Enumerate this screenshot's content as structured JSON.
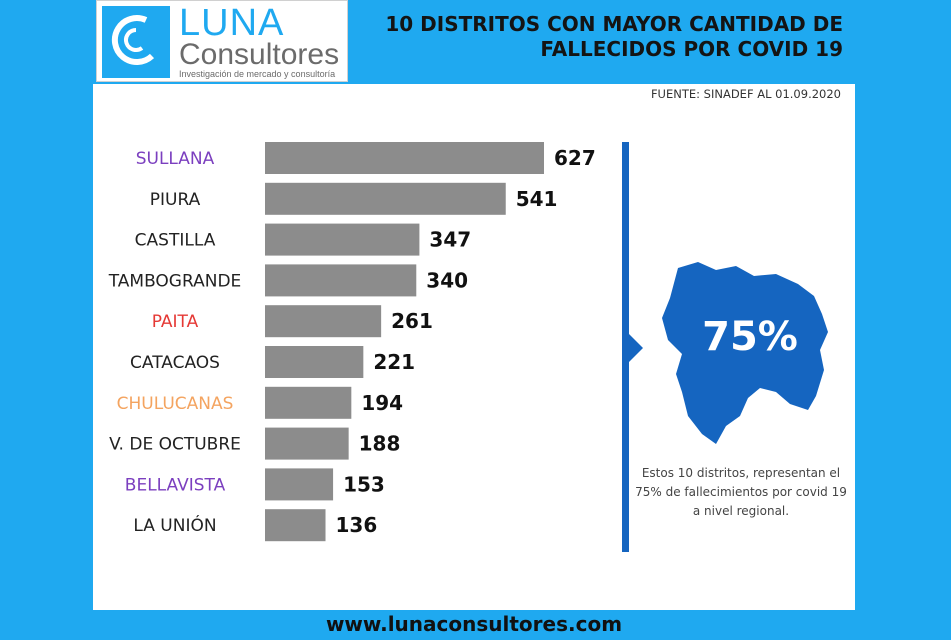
{
  "brand": {
    "name_line1": "LUNA",
    "name_line2": "Consultores",
    "tagline": "Investigación de mercado y consultoría",
    "accent_color": "#1fa9f0"
  },
  "header": {
    "title_line1": "10 DISTRITOS CON MAYOR CANTIDAD DE",
    "title_line2": "FALLECIDOS POR COVID 19"
  },
  "source": "FUENTE: SINADEF AL 01.09.2020",
  "chart_data": {
    "type": "bar",
    "orientation": "horizontal",
    "categories": [
      "SULLANA",
      "PIURA",
      "CASTILLA",
      "TAMBOGRANDE",
      "PAITA",
      "CATACAOS",
      "CHULUCANAS",
      "V. DE OCTUBRE",
      "BELLAVISTA",
      "LA UNIÓN"
    ],
    "values": [
      627,
      541,
      347,
      340,
      261,
      221,
      194,
      188,
      153,
      136
    ],
    "label_colors": [
      "#7b3fbf",
      "#222222",
      "#222222",
      "#222222",
      "#e53935",
      "#222222",
      "#f4a460",
      "#222222",
      "#7b3fbf",
      "#222222"
    ],
    "bar_color": "#8c8c8c",
    "data_labels": true,
    "grid": false
  },
  "summary": {
    "percentage": "75%",
    "caption": "Estos 10 distritos, representan el 75% de fallecimientos por covid 19 a nivel regional.",
    "map_color": "#1565c0"
  },
  "footer": {
    "website": "www.lunaconsultores.com"
  }
}
